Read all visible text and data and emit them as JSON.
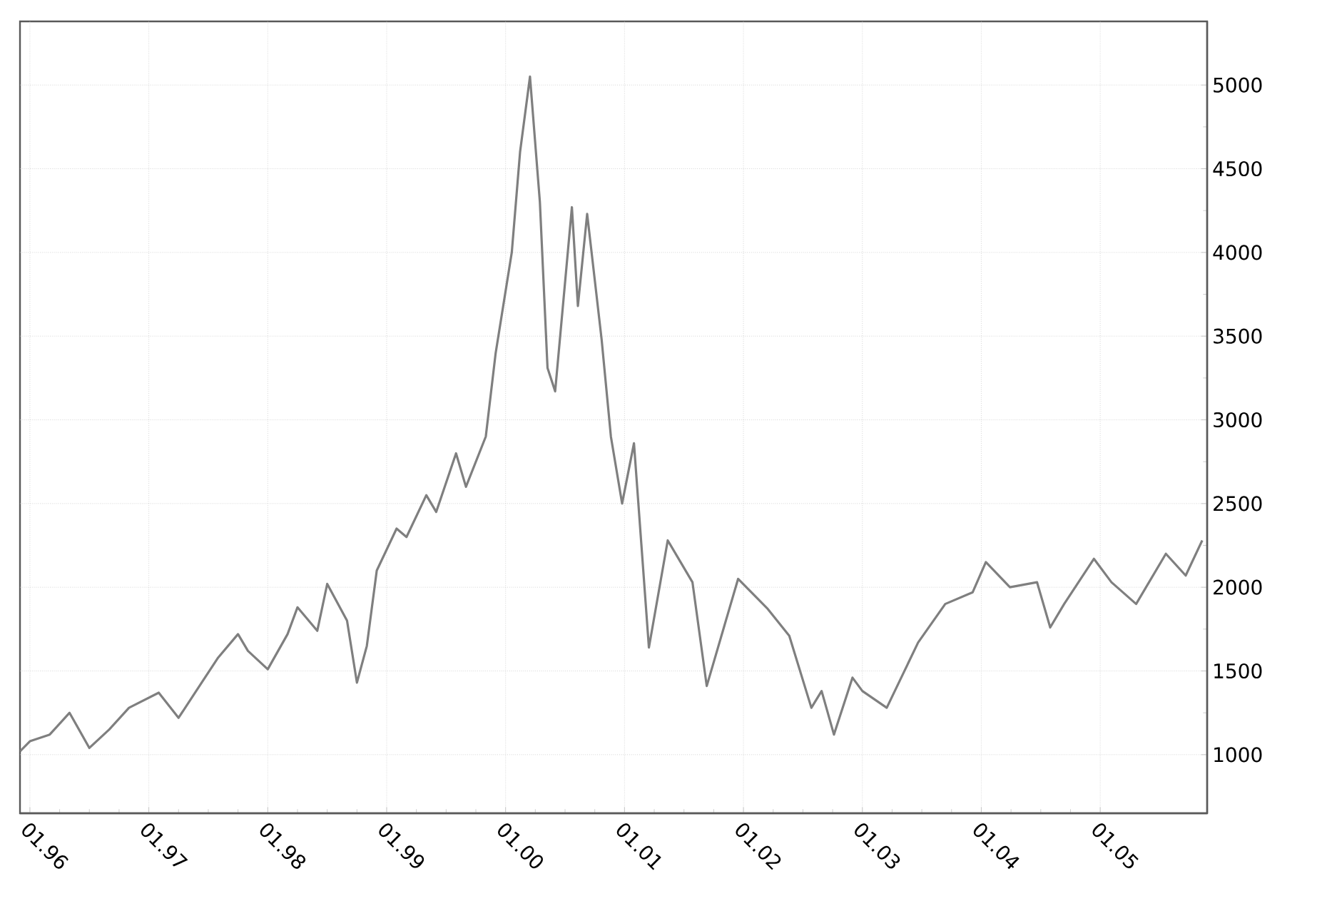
{
  "chart_data": {
    "type": "line",
    "x": [
      "1995-12",
      "1996-01",
      "1996-03",
      "1996-05",
      "1996-07",
      "1996-09",
      "1996-11",
      "1997-02",
      "1997-04",
      "1997-06",
      "1997-08",
      "1997-10",
      "1997-11",
      "1998-01",
      "1998-03",
      "1998-04",
      "1998-06",
      "1998-07",
      "1998-09",
      "1998-10",
      "1998-11",
      "1998-12",
      "1999-02",
      "1999-03",
      "1999-05",
      "1999-06",
      "1999-08",
      "1999-09",
      "1999-11",
      "1999-12",
      "2000-01-20",
      "2000-02-15",
      "2000-03-15",
      "2000-04-15",
      "2000-05-08",
      "2000-06-01",
      "2000-07-22",
      "2000-08-10",
      "2000-09-08",
      "2000-10-22",
      "2000-11-20",
      "2000-12-24",
      "2001-01-30",
      "2001-03-15",
      "2001-05-12",
      "2001-07-27",
      "2001-09-10",
      "2001-12-15",
      "2002-03-15",
      "2002-05-20",
      "2002-07-27",
      "2002-08-28",
      "2002-10-05",
      "2002-12-01",
      "2003-01",
      "2003-03-15",
      "2003-06-20",
      "2003-09-12",
      "2003-12-05",
      "2004-01-15",
      "2004-03-28",
      "2004-06-20",
      "2004-07-30",
      "2004-09-12",
      "2004-12-12",
      "2005-02-05",
      "2005-04-20",
      "2005-07-20",
      "2005-09-20",
      "2005-11-10"
    ],
    "series": [
      {
        "color": "#7f7f7f",
        "values": [
          1020,
          1080,
          1120,
          1250,
          1040,
          1150,
          1280,
          1370,
          1220,
          1400,
          1580,
          1720,
          1620,
          1510,
          1720,
          1880,
          1740,
          2020,
          1800,
          1430,
          1650,
          2100,
          2350,
          2300,
          2550,
          2450,
          2800,
          2600,
          2900,
          3400,
          4000,
          4600,
          5050,
          4300,
          3310,
          3170,
          4270,
          3680,
          4230,
          3480,
          2900,
          2500,
          2860,
          1640,
          2280,
          2030,
          1410,
          2050,
          1870,
          1710,
          1280,
          1380,
          1120,
          1460,
          1380,
          1280,
          1670,
          1900,
          1970,
          2150,
          2000,
          2030,
          1760,
          1900,
          2170,
          2030,
          1900,
          2200,
          2070,
          2280
        ]
      }
    ],
    "xlim": [
      "1995-12",
      "2005-11-25"
    ],
    "xticks": [
      {
        "value": "1996-01",
        "label": "01.96"
      },
      {
        "value": "1997-01",
        "label": "01.97"
      },
      {
        "value": "1998-01",
        "label": "01.98"
      },
      {
        "value": "1999-01",
        "label": "01.99"
      },
      {
        "value": "2000-01",
        "label": "01.00"
      },
      {
        "value": "2001-01",
        "label": "01.01"
      },
      {
        "value": "2002-01",
        "label": "01.02"
      },
      {
        "value": "2003-01",
        "label": "01.03"
      },
      {
        "value": "2004-01",
        "label": "01.04"
      },
      {
        "value": "2005-01",
        "label": "01.05"
      }
    ],
    "ylim": [
      650,
      5380
    ],
    "yticks": [
      1000,
      1500,
      2000,
      2500,
      3000,
      3500,
      4000,
      4500,
      5000
    ],
    "grid": true,
    "legend": false,
    "marker": "none",
    "line_style": "solid"
  }
}
